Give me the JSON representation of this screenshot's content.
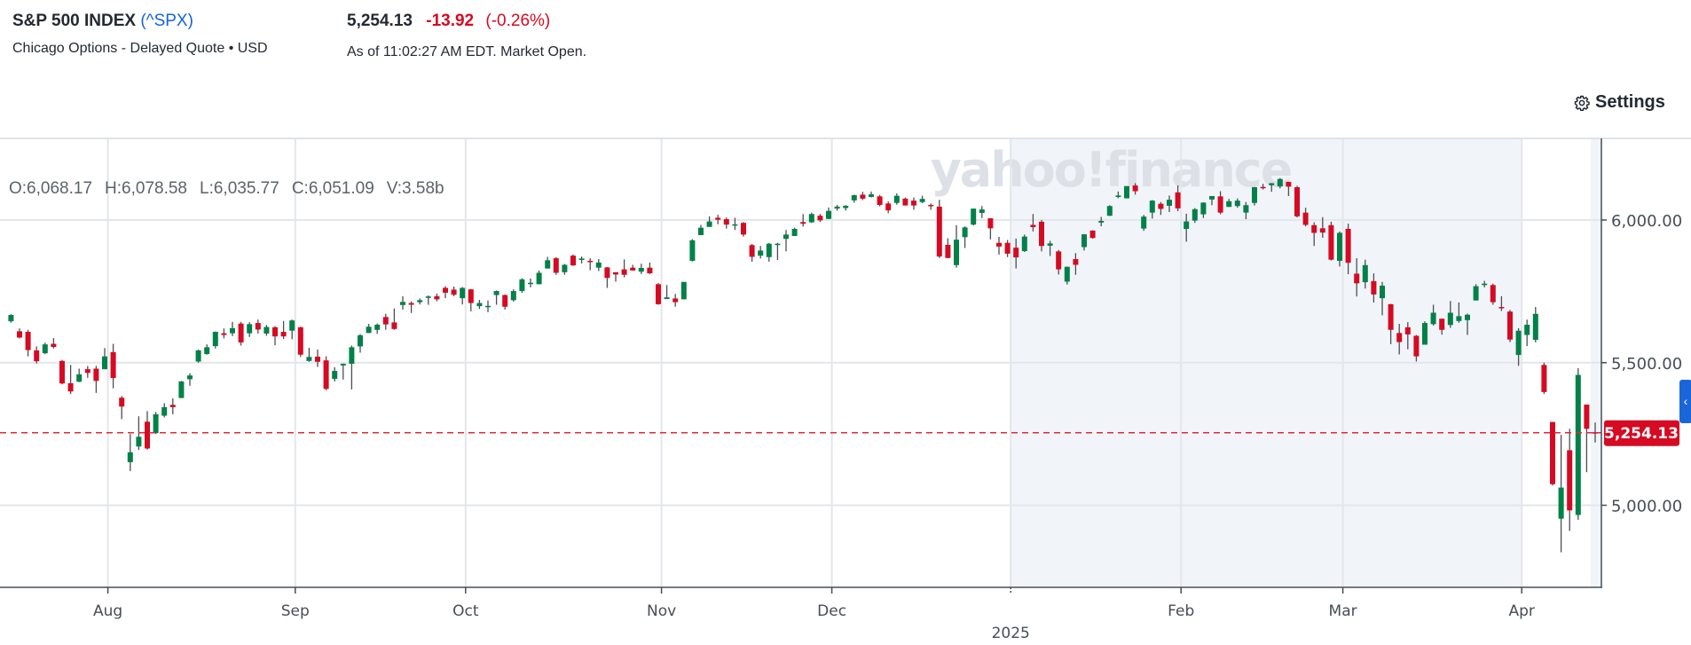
{
  "header": {
    "title": "S&P 500 INDEX",
    "symbol": "(^SPX)",
    "subtitle": "Chicago Options - Delayed Quote • USD",
    "price": "5,254.13",
    "change": "-13.92",
    "change_pct": "(-0.26%)",
    "as_of": "As of 11:02:27 AM EDT. Market Open."
  },
  "toolbar": {
    "settings_label": "Settings",
    "settings_icon": "gear-icon"
  },
  "readout": {
    "open": "O:6,068.17",
    "high": "H:6,078.58",
    "low": "L:6,035.77",
    "close": "C:6,051.09",
    "volume": "V:3.58b"
  },
  "watermark": "yahoo!finance",
  "colors": {
    "up": "#008148",
    "down": "#d60a22",
    "last_price": "#e0283c",
    "accent": "#1a66d9",
    "highlight": "#f1f5f9"
  },
  "chart_data": {
    "type": "candlestick",
    "title": "S&P 500 INDEX",
    "ylim": [
      4706,
      6287
    ],
    "y_ticks": [
      {
        "value": 6000,
        "label": "6,000.00"
      },
      {
        "value": 5500,
        "label": "5,500.00"
      },
      {
        "value": 5000,
        "label": "5,000.00"
      }
    ],
    "x_ticks": [
      {
        "index": 12,
        "label": "Aug"
      },
      {
        "index": 34,
        "label": "Sep"
      },
      {
        "index": 54,
        "label": "Oct"
      },
      {
        "index": 77,
        "label": "Nov"
      },
      {
        "index": 97,
        "label": "Dec"
      },
      {
        "index": 118,
        "label": "2025",
        "year": true
      },
      {
        "index": 138,
        "label": "Feb"
      },
      {
        "index": 157,
        "label": "Mar"
      },
      {
        "index": 178,
        "label": "Apr"
      }
    ],
    "highlight_range": [
      118,
      178
    ],
    "last_price": {
      "value": 5254.13,
      "label": "5,254.13"
    },
    "grid": true,
    "candles": [
      [
        5645,
        5670,
        5640,
        5667
      ],
      [
        5610,
        5620,
        5585,
        5588
      ],
      [
        5608,
        5615,
        5522,
        5544
      ],
      [
        5543,
        5557,
        5497,
        5505
      ],
      [
        5533,
        5570,
        5530,
        5564
      ],
      [
        5566,
        5586,
        5550,
        5555
      ],
      [
        5506,
        5509,
        5424,
        5427
      ],
      [
        5428,
        5492,
        5390,
        5399
      ],
      [
        5433,
        5479,
        5432,
        5459
      ],
      [
        5477,
        5488,
        5447,
        5464
      ],
      [
        5479,
        5489,
        5394,
        5436
      ],
      [
        5477,
        5551,
        5477,
        5522
      ],
      [
        5537,
        5566,
        5410,
        5446
      ],
      [
        5377,
        5383,
        5302,
        5346
      ],
      [
        5151,
        5250,
        5120,
        5186
      ],
      [
        5206,
        5312,
        5194,
        5240
      ],
      [
        5293,
        5330,
        5195,
        5199
      ],
      [
        5253,
        5327,
        5250,
        5319
      ],
      [
        5314,
        5358,
        5308,
        5344
      ],
      [
        5352,
        5375,
        5319,
        5344
      ],
      [
        5376,
        5436,
        5376,
        5434
      ],
      [
        5442,
        5463,
        5419,
        5455
      ],
      [
        5504,
        5546,
        5500,
        5543
      ],
      [
        5530,
        5564,
        5528,
        5554
      ],
      [
        5558,
        5609,
        5550,
        5608
      ],
      [
        5603,
        5620,
        5585,
        5597
      ],
      [
        5603,
        5643,
        5593,
        5621
      ],
      [
        5637,
        5643,
        5560,
        5571
      ],
      [
        5603,
        5642,
        5590,
        5635
      ],
      [
        5639,
        5651,
        5602,
        5616
      ],
      [
        5602,
        5632,
        5594,
        5625
      ],
      [
        5624,
        5628,
        5561,
        5592
      ],
      [
        5608,
        5646,
        5583,
        5592
      ],
      [
        5612,
        5651,
        5582,
        5648
      ],
      [
        5624,
        5626,
        5520,
        5528
      ],
      [
        5506,
        5552,
        5503,
        5520
      ],
      [
        5521,
        5546,
        5485,
        5503
      ],
      [
        5508,
        5522,
        5403,
        5408
      ],
      [
        5443,
        5484,
        5434,
        5471
      ],
      [
        5490,
        5497,
        5441,
        5496
      ],
      [
        5496,
        5560,
        5406,
        5554
      ],
      [
        5557,
        5600,
        5535,
        5596
      ],
      [
        5604,
        5636,
        5604,
        5626
      ],
      [
        5615,
        5637,
        5601,
        5633
      ],
      [
        5660,
        5671,
        5615,
        5634
      ],
      [
        5641,
        5690,
        5615,
        5618
      ],
      [
        5702,
        5733,
        5686,
        5713
      ],
      [
        5709,
        5715,
        5674,
        5703
      ],
      [
        5712,
        5725,
        5704,
        5719
      ],
      [
        5727,
        5736,
        5703,
        5732
      ],
      [
        5733,
        5742,
        5715,
        5722
      ],
      [
        5762,
        5768,
        5726,
        5745
      ],
      [
        5756,
        5767,
        5733,
        5738
      ],
      [
        5726,
        5765,
        5704,
        5762
      ],
      [
        5757,
        5758,
        5680,
        5709
      ],
      [
        5698,
        5720,
        5688,
        5709
      ],
      [
        5698,
        5718,
        5677,
        5699
      ],
      [
        5737,
        5753,
        5703,
        5751
      ],
      [
        5737,
        5739,
        5686,
        5696
      ],
      [
        5719,
        5757,
        5714,
        5751
      ],
      [
        5751,
        5796,
        5745,
        5792
      ],
      [
        5778,
        5795,
        5764,
        5780
      ],
      [
        5775,
        5823,
        5775,
        5815
      ],
      [
        5830,
        5871,
        5830,
        5859
      ],
      [
        5866,
        5870,
        5808,
        5815
      ],
      [
        5817,
        5846,
        5808,
        5843
      ],
      [
        5875,
        5879,
        5839,
        5841
      ],
      [
        5860,
        5872,
        5848,
        5865
      ],
      [
        5857,
        5866,
        5824,
        5853
      ],
      [
        5833,
        5863,
        5821,
        5851
      ],
      [
        5834,
        5835,
        5762,
        5797
      ],
      [
        5817,
        5817,
        5784,
        5809
      ],
      [
        5827,
        5862,
        5799,
        5808
      ],
      [
        5833,
        5843,
        5823,
        5823
      ],
      [
        5819,
        5847,
        5811,
        5832
      ],
      [
        5833,
        5851,
        5811,
        5813
      ],
      [
        5775,
        5779,
        5703,
        5705
      ],
      [
        5723,
        5772,
        5723,
        5729
      ],
      [
        5725,
        5741,
        5696,
        5712
      ],
      [
        5722,
        5783,
        5722,
        5783
      ],
      [
        5857,
        5933,
        5855,
        5929
      ],
      [
        5947,
        5983,
        5947,
        5973
      ],
      [
        5976,
        6013,
        5976,
        5995
      ],
      [
        6008,
        6018,
        5985,
        6001
      ],
      [
        6003,
        6009,
        5970,
        5984
      ],
      [
        5985,
        6008,
        5965,
        5985
      ],
      [
        5990,
        5993,
        5942,
        5949
      ],
      [
        5912,
        5916,
        5854,
        5871
      ],
      [
        5875,
        5909,
        5865,
        5893
      ],
      [
        5870,
        5920,
        5854,
        5917
      ],
      [
        5914,
        5920,
        5860,
        5917
      ],
      [
        5934,
        5965,
        5890,
        5949
      ],
      [
        5944,
        5973,
        5944,
        5969
      ],
      [
        5993,
        6021,
        5977,
        5987
      ],
      [
        5992,
        6026,
        5990,
        6021
      ],
      [
        6015,
        6021,
        5993,
        5999
      ],
      [
        6004,
        6044,
        6003,
        6032
      ],
      [
        6040,
        6053,
        6033,
        6047
      ],
      [
        6042,
        6052,
        6033,
        6050
      ],
      [
        6069,
        6089,
        6061,
        6087
      ],
      [
        6089,
        6099,
        6070,
        6075
      ],
      [
        6081,
        6100,
        6079,
        6090
      ],
      [
        6083,
        6088,
        6048,
        6053
      ],
      [
        6058,
        6065,
        6024,
        6034
      ],
      [
        6060,
        6093,
        6054,
        6085
      ],
      [
        6075,
        6079,
        6051,
        6051
      ],
      [
        6068,
        6079,
        6036,
        6051
      ],
      [
        6063,
        6085,
        6059,
        6074
      ],
      [
        6053,
        6058,
        6036,
        6051
      ],
      [
        6047,
        6071,
        5867,
        5872
      ],
      [
        5913,
        5936,
        5866,
        5867
      ],
      [
        5842,
        5982,
        5833,
        5931
      ],
      [
        5940,
        5978,
        5902,
        5974
      ],
      [
        5984,
        6040,
        5981,
        6040
      ],
      [
        6025,
        6049,
        6007,
        6037
      ],
      [
        6006,
        6006,
        5932,
        5971
      ],
      [
        5920,
        5941,
        5879,
        5907
      ],
      [
        5920,
        5930,
        5870,
        5882
      ],
      [
        5903,
        5935,
        5830,
        5869
      ],
      [
        5891,
        5949,
        5888,
        5942
      ],
      [
        5983,
        6021,
        5960,
        5975
      ],
      [
        5994,
        6000,
        5890,
        5909
      ],
      [
        5910,
        5927,
        5874,
        5918
      ],
      [
        5890,
        5895,
        5809,
        5827
      ],
      [
        5784,
        5837,
        5774,
        5836
      ],
      [
        5863,
        5884,
        5808,
        5843
      ],
      [
        5905,
        5950,
        5893,
        5950
      ],
      [
        5963,
        5964,
        5935,
        5937
      ],
      [
        5991,
        6011,
        5978,
        5997
      ],
      [
        6015,
        6052,
        6014,
        6049
      ],
      [
        6081,
        6100,
        6076,
        6086
      ],
      [
        6076,
        6119,
        6076,
        6119
      ],
      [
        6121,
        6129,
        6089,
        6101
      ],
      [
        5970,
        6018,
        5962,
        6012
      ],
      [
        6026,
        6070,
        6005,
        6068
      ],
      [
        6057,
        6063,
        6018,
        6039
      ],
      [
        6050,
        6086,
        6028,
        6071
      ],
      [
        6097,
        6121,
        6031,
        6041
      ],
      [
        5969,
        6022,
        5924,
        5995
      ],
      [
        5998,
        6042,
        5990,
        6038
      ],
      [
        6020,
        6062,
        6007,
        6061
      ],
      [
        6072,
        6084,
        6052,
        6084
      ],
      [
        6083,
        6101,
        6020,
        6026
      ],
      [
        6046,
        6074,
        6046,
        6066
      ],
      [
        6049,
        6076,
        6043,
        6068
      ],
      [
        6026,
        6063,
        6003,
        6052
      ],
      [
        6060,
        6116,
        6051,
        6115
      ],
      [
        6116,
        6127,
        6107,
        6115
      ],
      [
        6122,
        6130,
        6099,
        6129
      ],
      [
        6118,
        6147,
        6111,
        6144
      ],
      [
        6134,
        6134,
        6084,
        6117
      ],
      [
        6115,
        6120,
        6009,
        6013
      ],
      [
        6026,
        6043,
        5978,
        5983
      ],
      [
        5982,
        5992,
        5909,
        5955
      ],
      [
        5971,
        6010,
        5938,
        5956
      ],
      [
        5982,
        5994,
        5858,
        5861
      ],
      [
        5857,
        5960,
        5837,
        5955
      ],
      [
        5969,
        5987,
        5810,
        5850
      ],
      [
        5812,
        5866,
        5732,
        5778
      ],
      [
        5782,
        5861,
        5760,
        5842
      ],
      [
        5786,
        5813,
        5711,
        5739
      ],
      [
        5726,
        5783,
        5666,
        5770
      ],
      [
        5705,
        5706,
        5565,
        5615
      ],
      [
        5604,
        5636,
        5529,
        5572
      ],
      [
        5624,
        5642,
        5547,
        5599
      ],
      [
        5594,
        5597,
        5504,
        5522
      ],
      [
        5563,
        5645,
        5563,
        5639
      ],
      [
        5635,
        5703,
        5630,
        5675
      ],
      [
        5654,
        5654,
        5598,
        5615
      ],
      [
        5632,
        5716,
        5622,
        5675
      ],
      [
        5646,
        5711,
        5640,
        5663
      ],
      [
        5649,
        5672,
        5597,
        5668
      ],
      [
        5718,
        5775,
        5718,
        5768
      ],
      [
        5772,
        5787,
        5764,
        5777
      ],
      [
        5772,
        5777,
        5703,
        5712
      ],
      [
        5695,
        5733,
        5681,
        5693
      ],
      [
        5679,
        5685,
        5572,
        5581
      ],
      [
        5527,
        5621,
        5489,
        5612
      ],
      [
        5597,
        5651,
        5558,
        5633
      ],
      [
        5580,
        5695,
        5571,
        5671
      ],
      [
        5492,
        5500,
        5390,
        5397
      ],
      [
        5292,
        5292,
        5069,
        5074
      ],
      [
        4953,
        5247,
        4835,
        5062
      ],
      [
        5193,
        5268,
        4910,
        4982
      ],
      [
        4966,
        5481,
        4949,
        5457
      ],
      [
        5353,
        5353,
        5116,
        5268
      ],
      [
        5256,
        5290,
        5220,
        5254
      ]
    ]
  }
}
